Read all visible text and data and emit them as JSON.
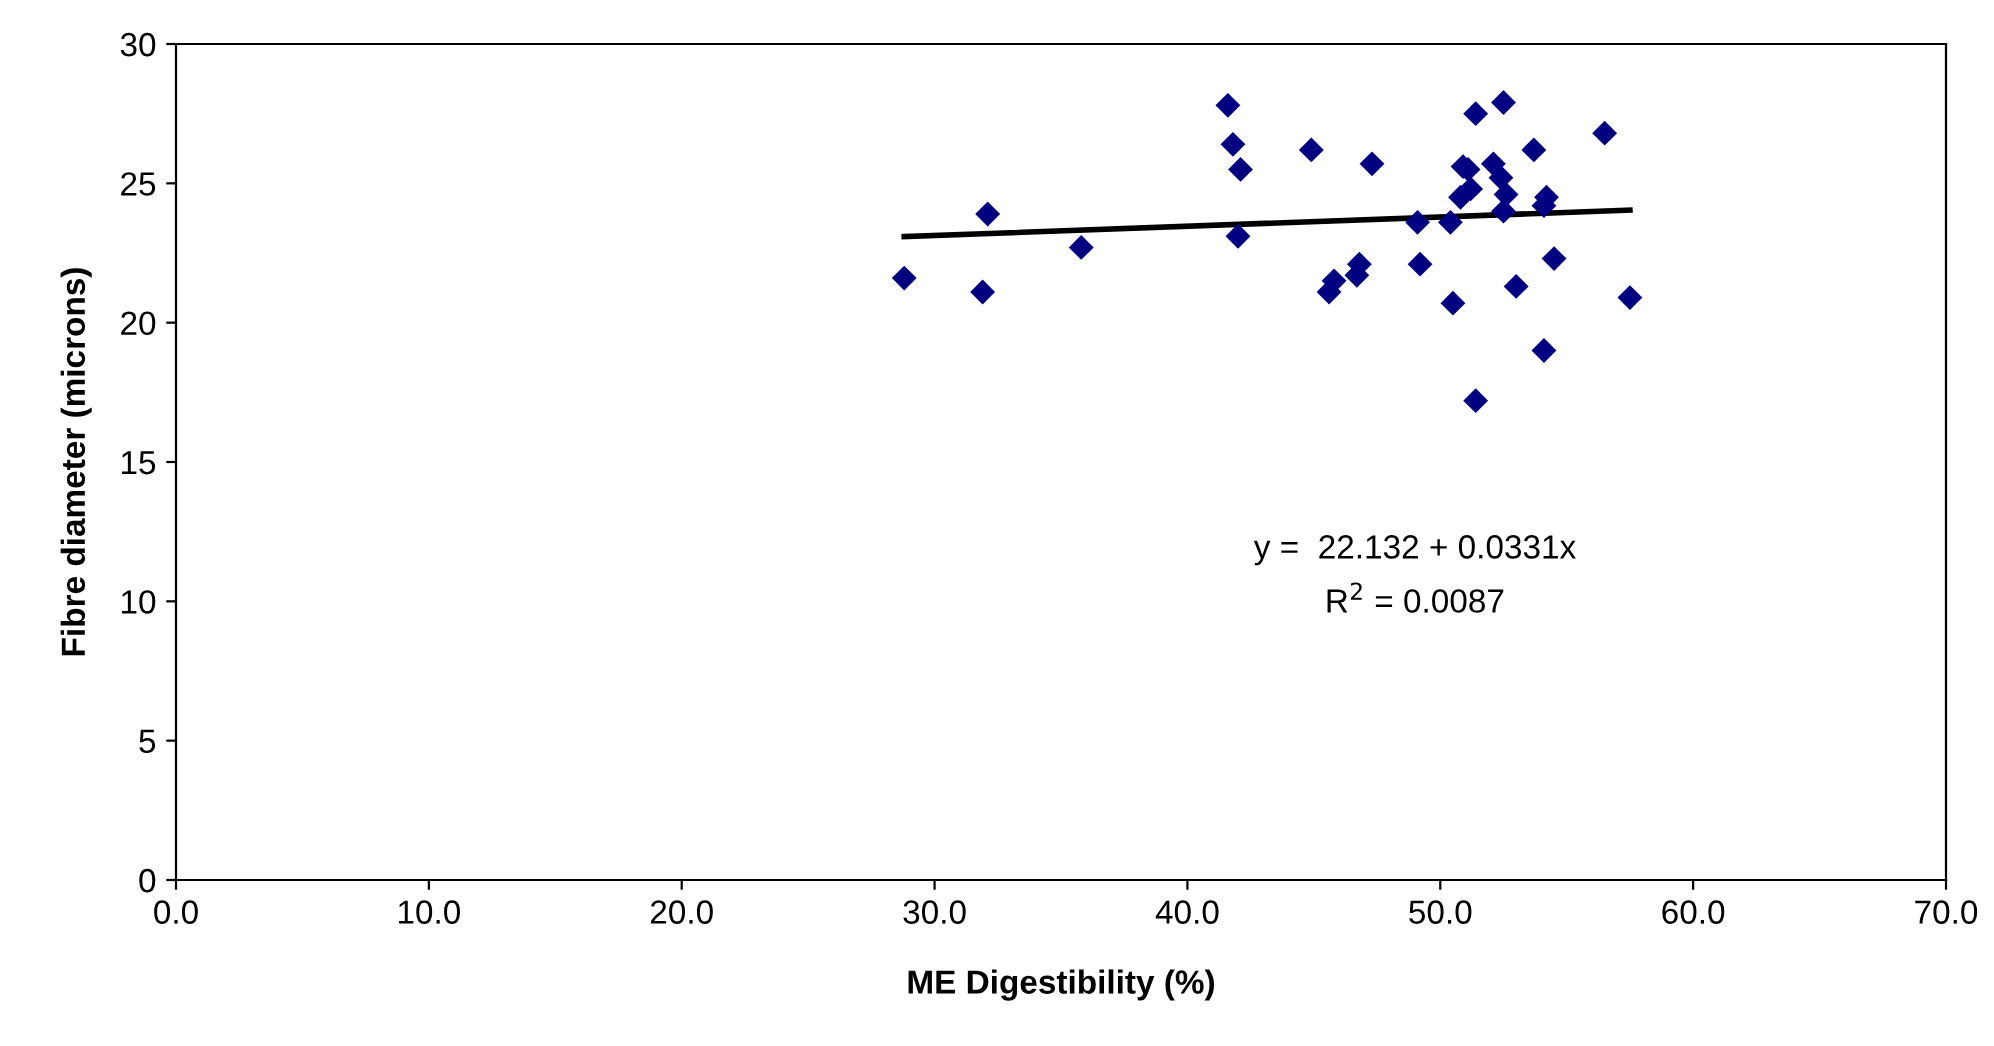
{
  "chart_data": {
    "type": "scatter",
    "xlabel": "ME Digestibility (%)",
    "ylabel": "Fibre diameter (microns)",
    "xlim": [
      0,
      70
    ],
    "xticks": [
      {
        "value": 0,
        "label": "0.0"
      },
      {
        "value": 10,
        "label": "10.0"
      },
      {
        "value": 20,
        "label": "20.0"
      },
      {
        "value": 30,
        "label": "30.0"
      },
      {
        "value": 40,
        "label": "40.0"
      },
      {
        "value": 50,
        "label": "50.0"
      },
      {
        "value": 60,
        "label": "60.0"
      },
      {
        "value": 70,
        "label": "70.0"
      }
    ],
    "ylim": [
      0,
      30
    ],
    "yticks": [
      0,
      5,
      10,
      15,
      20,
      25,
      30
    ],
    "grid": false,
    "legend": false,
    "series": [
      {
        "marker": "diamond",
        "color": "#000080",
        "x": [
          28.8,
          31.9,
          32.1,
          35.8,
          41.6,
          41.8,
          42.1,
          42.0,
          44.9,
          47.3,
          45.6,
          45.8,
          46.7,
          46.8,
          49.1,
          49.2,
          50.5,
          50.4,
          50.8,
          51.2,
          50.9,
          51.1,
          51.4,
          51.4,
          52.5,
          52.1,
          52.4,
          52.6,
          52.5,
          53.0,
          53.7,
          54.2,
          54.1,
          54.1,
          54.5,
          56.5,
          57.5
        ],
        "values": [
          21.6,
          21.1,
          23.9,
          22.7,
          27.8,
          26.4,
          25.5,
          23.1,
          26.2,
          25.7,
          21.1,
          21.5,
          21.7,
          22.1,
          23.6,
          22.1,
          20.7,
          23.6,
          24.5,
          24.8,
          25.6,
          25.5,
          27.5,
          17.2,
          27.9,
          25.7,
          25.2,
          24.6,
          24.0,
          21.3,
          26.2,
          24.5,
          24.2,
          19.0,
          22.3,
          26.8,
          20.9
        ]
      },
      {
        "type": "line",
        "marker": "none",
        "color": "#000000",
        "line_style": "solid",
        "x": [
          28.8,
          57.5
        ],
        "values": [
          23.09,
          24.04
        ]
      }
    ],
    "annotations": [
      "y =  22.132 + 0.0331x",
      "R$^{2}$ = 0.0087"
    ]
  }
}
